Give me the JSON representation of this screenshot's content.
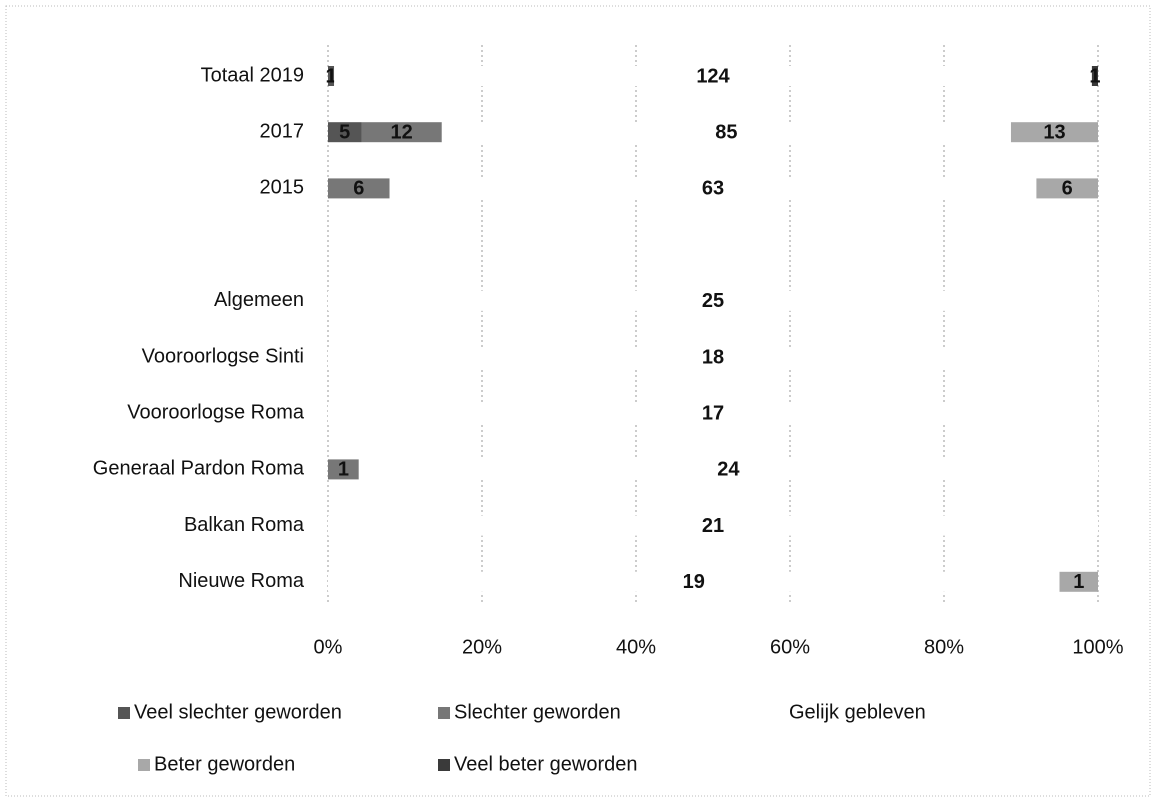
{
  "chart_data": {
    "type": "stacked_percent_bar",
    "orientation": "horizontal",
    "categories": [
      "Totaal 2019",
      "2017",
      "2015",
      null,
      "Algemeen",
      "Vooroorlogse Sinti",
      "Vooroorlogse Roma",
      "Generaal Pardon Roma",
      "Balkan Roma",
      "Nieuwe Roma"
    ],
    "series": [
      {
        "name": "Veel slechter geworden",
        "color": "#555555",
        "values": [
          1,
          5,
          null,
          null,
          null,
          null,
          null,
          null,
          null,
          null
        ]
      },
      {
        "name": "Slechter geworden",
        "color": "#777777",
        "values": [
          null,
          12,
          6,
          null,
          null,
          null,
          null,
          1,
          null,
          null
        ]
      },
      {
        "name": "Gelijk gebleven",
        "color": "#ffffff",
        "values": [
          124,
          85,
          63,
          null,
          25,
          18,
          17,
          24,
          21,
          19
        ]
      },
      {
        "name": "Beter geworden",
        "color": "#a8a8a8",
        "values": [
          null,
          13,
          6,
          null,
          null,
          null,
          null,
          null,
          null,
          1
        ]
      },
      {
        "name": "Veel beter geworden",
        "color": "#3a3a3a",
        "values": [
          1,
          null,
          null,
          null,
          null,
          null,
          null,
          null,
          null,
          null
        ]
      }
    ],
    "xlim": [
      0,
      100
    ],
    "xticks": [
      {
        "value": 0,
        "label": "0%"
      },
      {
        "value": 20,
        "label": "20%"
      },
      {
        "value": 40,
        "label": "40%"
      },
      {
        "value": 60,
        "label": "60%"
      },
      {
        "value": 80,
        "label": "80%"
      },
      {
        "value": 100,
        "label": "100%"
      }
    ],
    "grid": true,
    "legend": "bottom"
  }
}
